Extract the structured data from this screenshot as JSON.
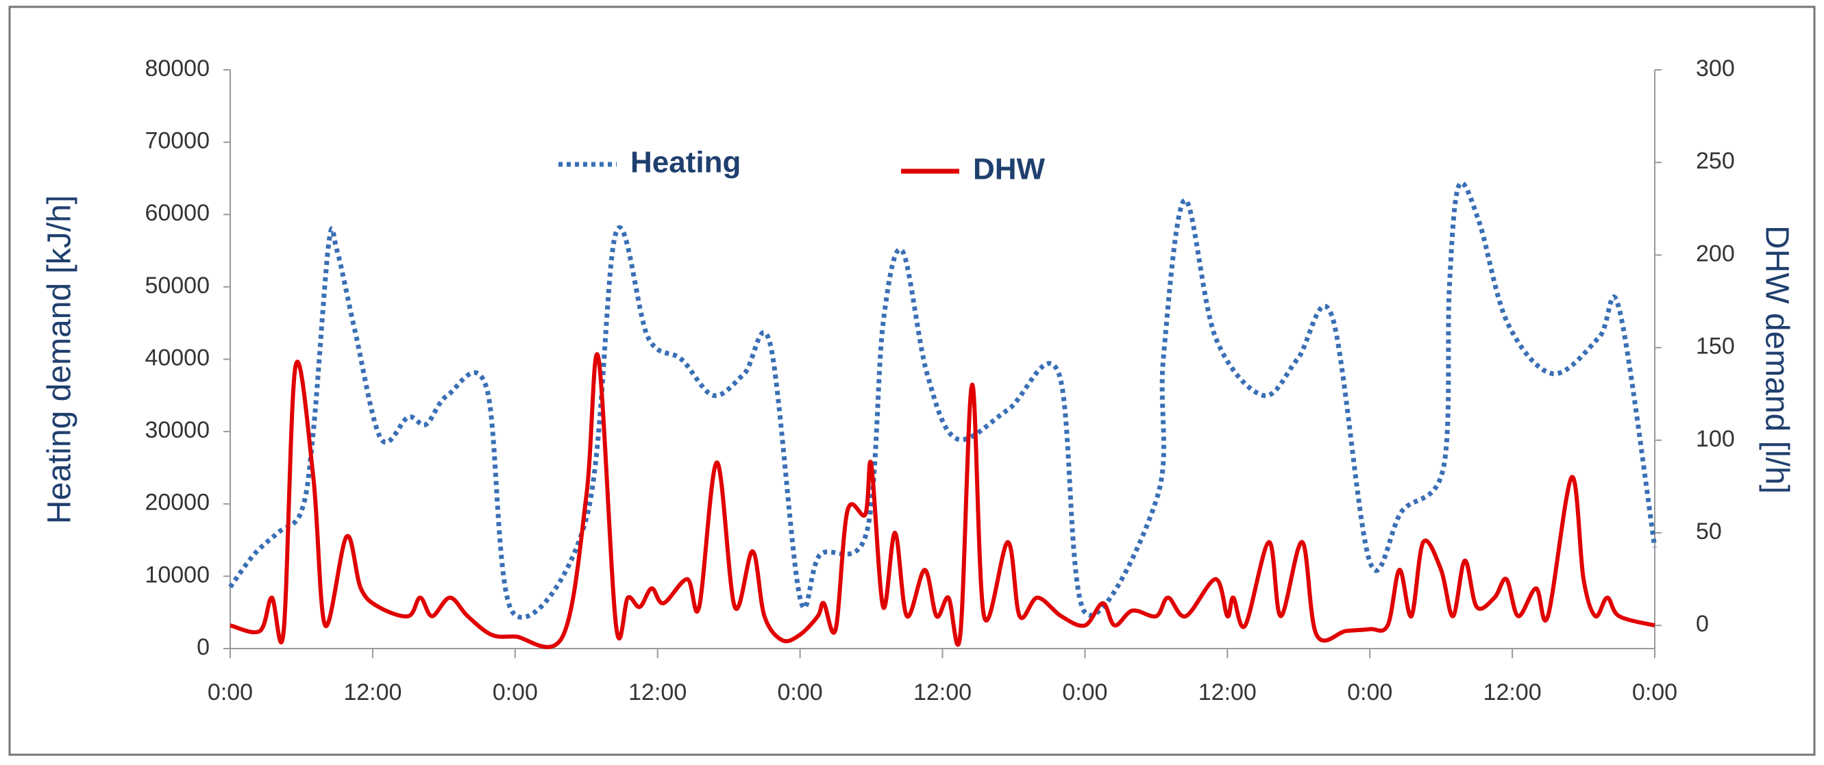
{
  "chart_data": {
    "type": "line",
    "y_label": "Heating demand [kJ/h]",
    "y2_label": "DHW demand [l/h]",
    "xlim": [
      0,
      120
    ],
    "xticks": [
      {
        "value": 0,
        "label": "0:00"
      },
      {
        "value": 12,
        "label": "12:00"
      },
      {
        "value": 24,
        "label": "0:00"
      },
      {
        "value": 36,
        "label": "12:00"
      },
      {
        "value": 48,
        "label": "0:00"
      },
      {
        "value": 60,
        "label": "12:00"
      },
      {
        "value": 72,
        "label": "0:00"
      },
      {
        "value": 84,
        "label": "12:00"
      },
      {
        "value": 96,
        "label": "0:00"
      },
      {
        "value": 108,
        "label": "12:00"
      },
      {
        "value": 120,
        "label": "0:00"
      }
    ],
    "ylim": [
      0,
      80000
    ],
    "yticks": [
      0,
      10000,
      20000,
      30000,
      40000,
      50000,
      60000,
      70000,
      80000
    ],
    "y2lim": [
      -12.5,
      300
    ],
    "y2ticks": [
      0,
      50,
      100,
      150,
      200,
      250,
      300
    ],
    "series": [
      {
        "name": "Heating",
        "color": "#3a6fb5",
        "dash": "dotted",
        "x": [
          0,
          2,
          4,
          6,
          7,
          8.3,
          9,
          10.5,
          12.7,
          15,
          16.5,
          18.3,
          21.6,
          23.8,
          30,
          32.5,
          35.2,
          38,
          40.7,
          43.3,
          45.5,
          48,
          49.7,
          53.6,
          55,
          56.6,
          58.7,
          61.2,
          65.5,
          69.8,
          72,
          78.1,
          78.6,
          80.4,
          83,
          87,
          89.9,
          92.8,
          96,
          98.7,
          102.2,
          102.7,
          103.5,
          105.2,
          107.6,
          111.4,
          115.3,
          117,
          120
        ],
        "values": [
          8500,
          13000,
          16000,
          19000,
          30000,
          56000,
          55000,
          44000,
          29000,
          32000,
          31000,
          35000,
          36000,
          5000,
          18000,
          57500,
          43000,
          40000,
          35000,
          38000,
          42000,
          7000,
          13000,
          16000,
          45000,
          55000,
          38000,
          29000,
          33000,
          38000,
          5000,
          21000,
          40000,
          62000,
          43000,
          35000,
          40000,
          46000,
          12000,
          19000,
          25000,
          50000,
          64000,
          59000,
          45000,
          38000,
          43000,
          47000,
          14000
        ]
      },
      {
        "name": "DHW",
        "color": "#e00000",
        "dash": "solid",
        "axis": "y2",
        "x": [
          0,
          2.5,
          3.5,
          4.5,
          5.5,
          7,
          8,
          9.8,
          11,
          12.5,
          15,
          16,
          17,
          18.5,
          20,
          22,
          24,
          28,
          30,
          31,
          32.5,
          33.5,
          34.5,
          35.5,
          36.5,
          38.5,
          39.5,
          41,
          42.5,
          44,
          45,
          46.5,
          48,
          49.5,
          50,
          51,
          52,
          53.5,
          54,
          55,
          56,
          57,
          58.5,
          59.5,
          60.5,
          61.5,
          62.5,
          63.5,
          65.5,
          66.5,
          68,
          70,
          72,
          73.5,
          74.5,
          76,
          78,
          79,
          80.5,
          83,
          84,
          84.5,
          85.5,
          87.5,
          88.5,
          90.3,
          91.5,
          94,
          96,
          97.5,
          98.5,
          99.5,
          100.5,
          102,
          103,
          104,
          105,
          106.5,
          107.5,
          108.5,
          110,
          111,
          113,
          114,
          115,
          116,
          117,
          120
        ],
        "values": [
          0,
          -3,
          15,
          -3,
          140,
          80,
          0,
          48,
          20,
          10,
          5,
          15,
          5,
          15,
          5,
          -5,
          -6,
          -6,
          70,
          145,
          0,
          15,
          10,
          20,
          12,
          25,
          10,
          88,
          10,
          40,
          5,
          -8,
          -5,
          5,
          12,
          -2,
          62,
          60,
          87,
          10,
          50,
          5,
          30,
          5,
          15,
          -5,
          130,
          5,
          45,
          5,
          15,
          5,
          0,
          12,
          0,
          8,
          5,
          15,
          5,
          25,
          5,
          15,
          0,
          45,
          5,
          45,
          -5,
          -3,
          -2,
          0,
          30,
          5,
          45,
          30,
          5,
          35,
          10,
          15,
          25,
          5,
          20,
          5,
          80,
          25,
          5,
          15,
          5,
          0
        ]
      }
    ]
  }
}
